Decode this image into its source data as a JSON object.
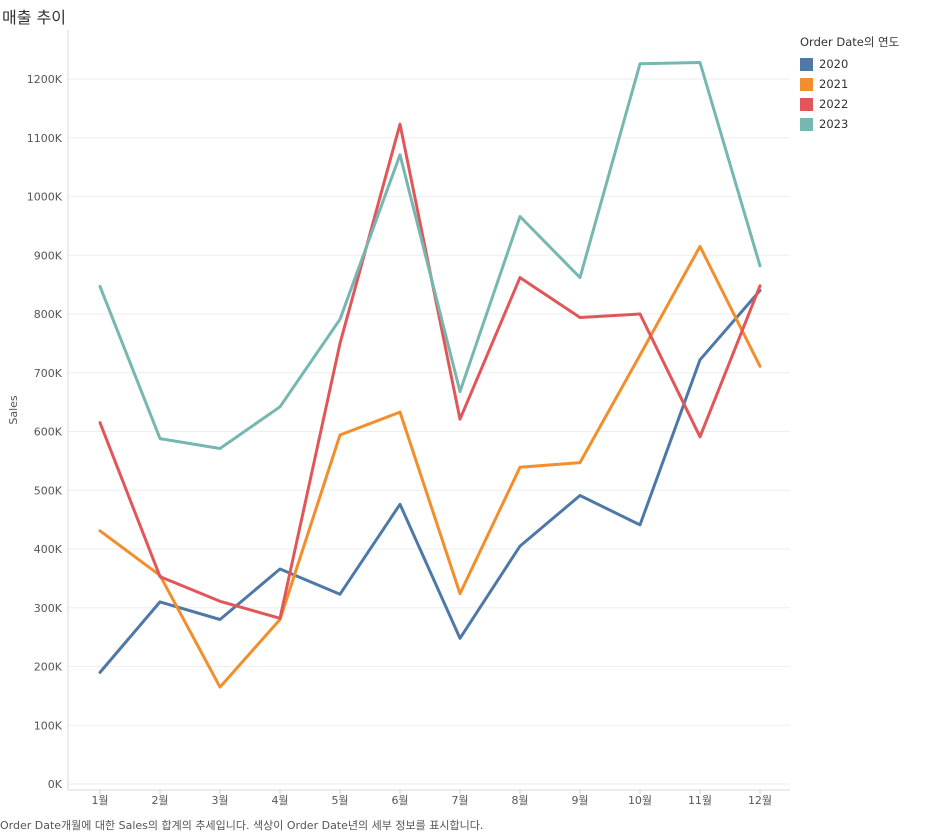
{
  "title": "매출 추이",
  "caption": "Order Date개월에 대한 Sales의 합계의 추세입니다. 색상이 Order Date년의 세부 정보를 표시합니다.",
  "legend": {
    "title": "Order Date의 연도",
    "items": [
      {
        "label": "2020",
        "color": "#4e79a7"
      },
      {
        "label": "2021",
        "color": "#f28e2b"
      },
      {
        "label": "2022",
        "color": "#e15759"
      },
      {
        "label": "2023",
        "color": "#76b7b2"
      }
    ]
  },
  "chart_data": {
    "type": "line",
    "title": "매출 추이",
    "xlabel": "",
    "ylabel": "Sales",
    "ylim": [
      0,
      1300000
    ],
    "yticks": [
      0,
      100000,
      200000,
      300000,
      400000,
      500000,
      600000,
      700000,
      800000,
      900000,
      1000000,
      1100000,
      1200000
    ],
    "ytick_labels": [
      "0K",
      "100K",
      "200K",
      "300K",
      "400K",
      "500K",
      "600K",
      "700K",
      "800K",
      "900K",
      "1000K",
      "1100K",
      "1200K"
    ],
    "categories": [
      "1월",
      "2월",
      "3월",
      "4월",
      "5월",
      "6월",
      "7월",
      "8월",
      "9월",
      "10월",
      "11월",
      "12월"
    ],
    "grid": true,
    "legend_position": "top-right",
    "series": [
      {
        "name": "2020",
        "color": "#4e79a7",
        "values": [
          190000,
          310000,
          280000,
          366000,
          323000,
          476000,
          248000,
          405000,
          491000,
          441000,
          722000,
          840000
        ]
      },
      {
        "name": "2021",
        "color": "#f28e2b",
        "values": [
          431000,
          355000,
          165000,
          280000,
          594000,
          633000,
          324000,
          539000,
          547000,
          730000,
          915000,
          711000
        ]
      },
      {
        "name": "2022",
        "color": "#e15759",
        "values": [
          615000,
          353000,
          311000,
          282000,
          750000,
          1123000,
          621000,
          862000,
          794000,
          800000,
          591000,
          848000
        ]
      },
      {
        "name": "2023",
        "color": "#76b7b2",
        "values": [
          847000,
          588000,
          571000,
          642000,
          791000,
          1071000,
          668000,
          966000,
          862000,
          1226000,
          1228000,
          882000
        ]
      }
    ]
  }
}
